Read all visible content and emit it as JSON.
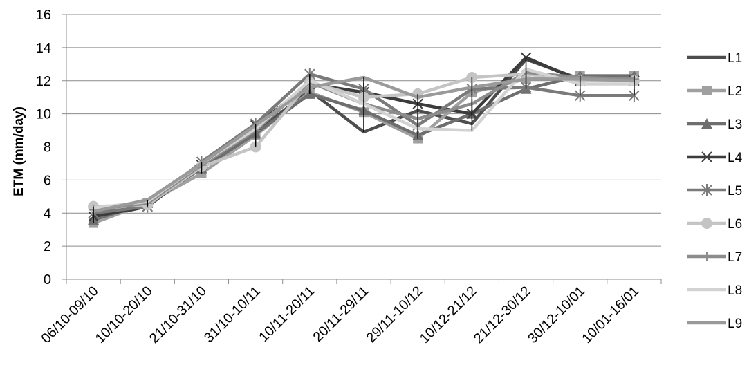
{
  "chart_data": {
    "type": "line",
    "title": "",
    "xlabel": "",
    "ylabel": "ETM (mm/day)",
    "ylim": [
      0,
      16
    ],
    "yticks": [
      0,
      2,
      4,
      6,
      8,
      10,
      12,
      14,
      16
    ],
    "grid": "horizontal",
    "legend_position": "right",
    "categories": [
      "06/10-09/10",
      "10/10-20/10",
      "21/10-31/10",
      "31/10-10/11",
      "10/11-20/11",
      "20/11-29/11",
      "29/11-10/12",
      "10/12-21/12",
      "21/12-30/12",
      "30/12-10/01",
      "10/01-16/01"
    ],
    "series": [
      {
        "name": "L1",
        "marker": "none",
        "color": "#4d4d4d",
        "values": [
          3.7,
          4.4,
          6.9,
          8.9,
          11.4,
          8.9,
          10.2,
          9.4,
          13.3,
          12.1,
          12.1
        ]
      },
      {
        "name": "L2",
        "marker": "square",
        "color": "#a0a0a0",
        "values": [
          3.4,
          4.6,
          6.4,
          8.7,
          11.3,
          10.1,
          8.5,
          11.3,
          12.1,
          12.3,
          12.3
        ]
      },
      {
        "name": "L3",
        "marker": "triangle",
        "color": "#6e6e6e",
        "values": [
          3.6,
          4.6,
          6.7,
          8.8,
          11.2,
          10.2,
          8.7,
          10.0,
          11.5,
          12.3,
          12.3
        ]
      },
      {
        "name": "L4",
        "marker": "x",
        "color": "#3c3c3c",
        "values": [
          3.8,
          4.4,
          6.9,
          9.3,
          11.8,
          11.3,
          10.6,
          10.0,
          13.4,
          12.0,
          12.0
        ]
      },
      {
        "name": "L5",
        "marker": "star",
        "color": "#7a7a7a",
        "values": [
          4.0,
          4.4,
          7.1,
          9.4,
          12.4,
          11.5,
          9.3,
          11.5,
          11.6,
          11.1,
          11.1
        ]
      },
      {
        "name": "L6",
        "marker": "circle",
        "color": "#c4c4c4",
        "values": [
          4.4,
          4.5,
          6.8,
          8.0,
          11.9,
          11.0,
          11.2,
          12.2,
          12.4,
          12.0,
          12.0
        ]
      },
      {
        "name": "L7",
        "marker": "plus",
        "color": "#8c8c8c",
        "values": [
          4.2,
          4.6,
          6.9,
          9.0,
          11.9,
          10.6,
          9.7,
          10.6,
          12.5,
          12.2,
          12.1
        ]
      },
      {
        "name": "L8",
        "marker": "none",
        "color": "#d2d2d2",
        "values": [
          4.3,
          4.7,
          7.0,
          9.1,
          12.0,
          10.6,
          9.1,
          9.0,
          12.7,
          11.8,
          11.8
        ]
      },
      {
        "name": "L9",
        "marker": "none",
        "color": "#9a9a9a",
        "values": [
          4.1,
          4.8,
          7.0,
          9.3,
          11.6,
          12.2,
          11.0,
          11.6,
          12.1,
          12.1,
          12.0
        ]
      }
    ],
    "error_bars": {
      "color": "#000000",
      "low": [
        3.4,
        4.4,
        6.4,
        8.0,
        11.2,
        8.9,
        8.5,
        9.0,
        11.5,
        11.1,
        11.1
      ],
      "high": [
        4.4,
        4.8,
        7.1,
        9.4,
        12.4,
        12.2,
        11.2,
        12.2,
        13.4,
        12.3,
        12.3
      ]
    }
  }
}
